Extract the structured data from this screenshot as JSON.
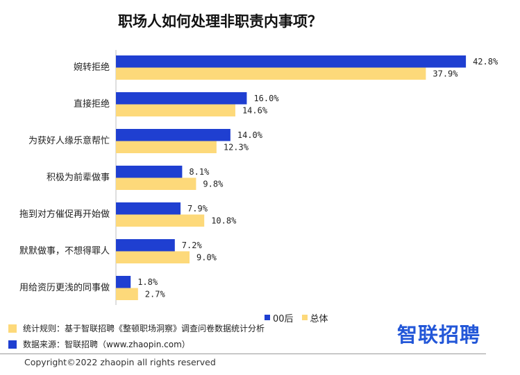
{
  "chart_data": {
    "type": "bar",
    "orientation": "horizontal",
    "title": "职场人如何处理非职责内事项？",
    "xlabel": "",
    "ylabel": "",
    "xlim": [
      0,
      45
    ],
    "grid": false,
    "legend_position": "bottom",
    "value_suffix": "%",
    "categories": [
      "婉转拒绝",
      "直接拒绝",
      "为获好人缘乐意帮忙",
      "积极为前辈做事",
      "拖到对方催促再开始做",
      "默默做事，不想得罪人",
      "用给资历更浅的同事做"
    ],
    "series": [
      {
        "name": "00后",
        "color": "#1f3fd1",
        "values": [
          42.8,
          16.0,
          14.0,
          8.1,
          7.9,
          7.2,
          1.8
        ]
      },
      {
        "name": "总体",
        "color": "#fdd97a",
        "values": [
          37.9,
          14.6,
          12.3,
          9.8,
          10.8,
          9.0,
          2.7
        ]
      }
    ]
  },
  "notes": [
    {
      "text": "统计规则：基于智联招聘《整顿职场洞察》调查问卷数据统计分析",
      "color": "#fdd97a"
    },
    {
      "text": "数据来源：智联招聘（www.zhaopin.com）",
      "color": "#1f3fd1"
    }
  ],
  "logo": {
    "text": "智联招聘",
    "color": "#2357d8"
  },
  "copyright": "Copyright©2022 zhaopin all rights reserved"
}
